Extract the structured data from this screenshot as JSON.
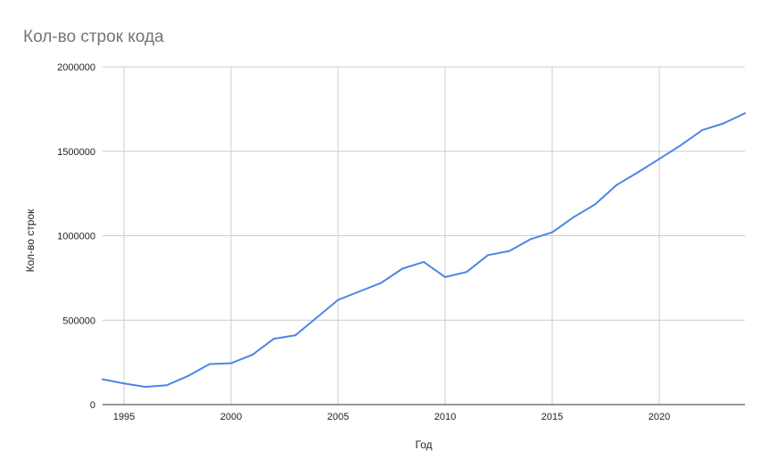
{
  "chart_data": {
    "type": "line",
    "title": "Кол-во строк кода",
    "xlabel": "Год",
    "ylabel": "Кол-во строк",
    "xlim": [
      1994,
      2024
    ],
    "ylim": [
      0,
      2000000
    ],
    "x_ticks": [
      "1995",
      "2000",
      "2005",
      "2010",
      "2015",
      "2020"
    ],
    "y_ticks": [
      "0",
      "500000",
      "1000000",
      "1500000",
      "2000000"
    ],
    "grid": true,
    "legend": "none",
    "series": [
      {
        "color": "#4a86e8",
        "x": [
          1994,
          1995,
          1996,
          1997,
          1998,
          1999,
          2000,
          2001,
          2002,
          2003,
          2004,
          2005,
          2006,
          2007,
          2008,
          2009,
          2010,
          2011,
          2012,
          2013,
          2014,
          2015,
          2016,
          2017,
          2018,
          2019,
          2020,
          2021,
          2022,
          2023,
          2024
        ],
        "values": [
          150000,
          125000,
          105000,
          115000,
          170000,
          240000,
          245000,
          295000,
          390000,
          410000,
          515000,
          620000,
          670000,
          720000,
          805000,
          845000,
          755000,
          785000,
          885000,
          910000,
          980000,
          1020000,
          1110000,
          1185000,
          1300000,
          1375000,
          1455000,
          1535000,
          1625000,
          1665000,
          1725000
        ]
      }
    ]
  }
}
